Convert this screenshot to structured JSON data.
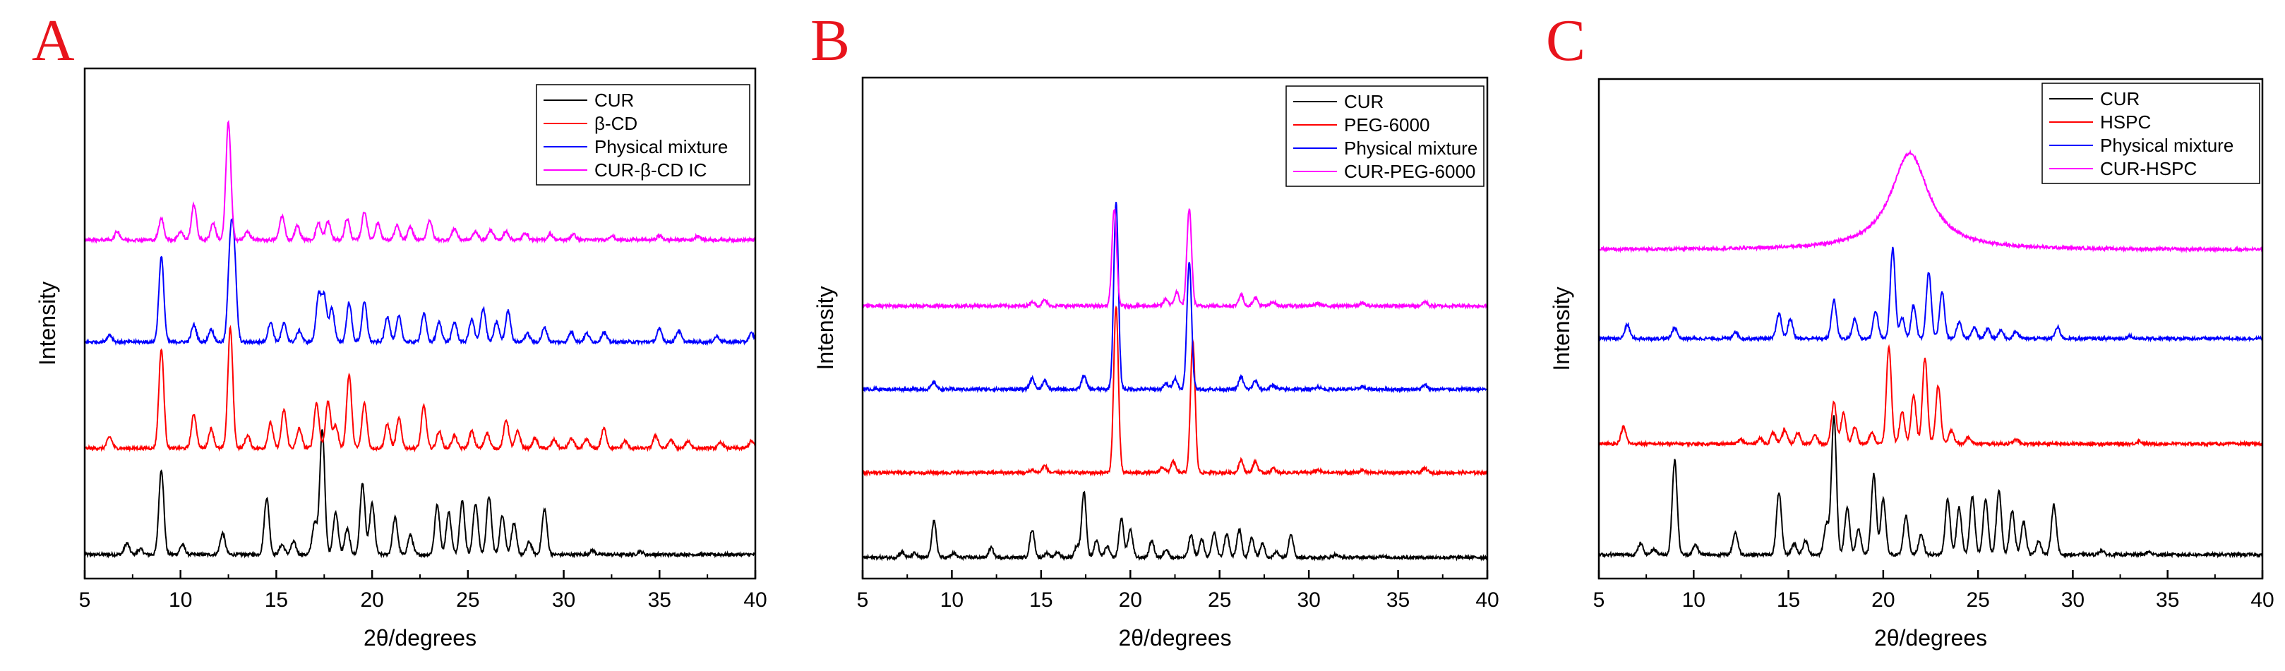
{
  "chart_data": [
    {
      "panel": "A",
      "type": "line",
      "title": "",
      "xlabel": "2θ/degrees",
      "ylabel": "Intensity",
      "xlim": [
        5,
        40
      ],
      "xticks": [
        5,
        10,
        15,
        20,
        25,
        30,
        35,
        40
      ],
      "yticks_shown": false,
      "legend_position": "top-right",
      "series": [
        {
          "name": "CUR",
          "color": "#000000",
          "offset": 0,
          "baseline": 3,
          "peaks": [
            [
              7.2,
              8
            ],
            [
              7.9,
              4
            ],
            [
              9.0,
              60
            ],
            [
              10.1,
              7
            ],
            [
              12.2,
              15
            ],
            [
              14.5,
              40
            ],
            [
              15.3,
              7
            ],
            [
              15.9,
              9
            ],
            [
              17.0,
              22
            ],
            [
              17.4,
              88
            ],
            [
              18.1,
              30
            ],
            [
              18.7,
              18
            ],
            [
              19.5,
              50
            ],
            [
              20.0,
              36
            ],
            [
              21.2,
              26
            ],
            [
              22.0,
              14
            ],
            [
              23.4,
              35
            ],
            [
              24.0,
              30
            ],
            [
              24.7,
              38
            ],
            [
              25.4,
              36
            ],
            [
              26.1,
              41
            ],
            [
              26.8,
              28
            ],
            [
              27.4,
              22
            ],
            [
              28.2,
              9
            ],
            [
              29.0,
              32
            ],
            [
              31.5,
              3
            ],
            [
              34.0,
              2
            ]
          ]
        },
        {
          "name": "β-CD",
          "color": "#ff0000",
          "offset": 75,
          "baseline": 3,
          "peaks": [
            [
              6.3,
              8
            ],
            [
              9.0,
              70
            ],
            [
              10.7,
              24
            ],
            [
              11.6,
              14
            ],
            [
              12.6,
              85
            ],
            [
              13.5,
              9
            ],
            [
              14.7,
              18
            ],
            [
              15.4,
              27
            ],
            [
              16.2,
              14
            ],
            [
              17.1,
              32
            ],
            [
              17.7,
              33
            ],
            [
              18.1,
              16
            ],
            [
              18.8,
              52
            ],
            [
              19.6,
              32
            ],
            [
              20.8,
              17
            ],
            [
              21.4,
              21
            ],
            [
              22.7,
              30
            ],
            [
              23.5,
              12
            ],
            [
              24.3,
              9
            ],
            [
              25.2,
              12
            ],
            [
              26.0,
              11
            ],
            [
              27.0,
              20
            ],
            [
              27.6,
              12
            ],
            [
              28.5,
              7
            ],
            [
              29.5,
              6
            ],
            [
              30.4,
              7
            ],
            [
              31.2,
              6
            ],
            [
              32.1,
              14
            ],
            [
              33.2,
              5
            ],
            [
              34.8,
              9
            ],
            [
              35.6,
              6
            ],
            [
              36.5,
              5
            ],
            [
              38.2,
              4
            ],
            [
              39.8,
              5
            ]
          ]
        },
        {
          "name": "Physical mixture",
          "color": "#0000ff",
          "offset": 150,
          "baseline": 3,
          "peaks": [
            [
              6.3,
              5
            ],
            [
              9.0,
              60
            ],
            [
              10.7,
              12
            ],
            [
              11.6,
              9
            ],
            [
              12.6,
              62
            ],
            [
              12.8,
              55
            ],
            [
              14.7,
              14
            ],
            [
              15.4,
              13
            ],
            [
              16.2,
              8
            ],
            [
              17.2,
              32
            ],
            [
              17.5,
              32
            ],
            [
              17.9,
              24
            ],
            [
              18.8,
              28
            ],
            [
              19.6,
              28
            ],
            [
              20.8,
              18
            ],
            [
              21.4,
              18
            ],
            [
              22.7,
              20
            ],
            [
              23.5,
              14
            ],
            [
              24.3,
              14
            ],
            [
              25.2,
              16
            ],
            [
              25.8,
              24
            ],
            [
              26.5,
              14
            ],
            [
              27.1,
              22
            ],
            [
              28.1,
              6
            ],
            [
              29.0,
              10
            ],
            [
              30.4,
              7
            ],
            [
              31.2,
              6
            ],
            [
              32.1,
              7
            ],
            [
              35.0,
              9
            ],
            [
              36.0,
              8
            ],
            [
              38.0,
              4
            ],
            [
              39.8,
              6
            ]
          ]
        },
        {
          "name": "CUR-β-CD IC",
          "color": "#ff00ff",
          "offset": 222,
          "baseline": 3,
          "peaks": [
            [
              6.7,
              6
            ],
            [
              9.0,
              15
            ],
            [
              10.0,
              6
            ],
            [
              10.7,
              25
            ],
            [
              11.7,
              12
            ],
            [
              12.5,
              83
            ],
            [
              13.5,
              6
            ],
            [
              15.3,
              17
            ],
            [
              16.1,
              10
            ],
            [
              17.2,
              12
            ],
            [
              17.7,
              13
            ],
            [
              18.7,
              15
            ],
            [
              19.6,
              20
            ],
            [
              20.3,
              12
            ],
            [
              21.3,
              10
            ],
            [
              22.0,
              9
            ],
            [
              23.0,
              14
            ],
            [
              24.3,
              8
            ],
            [
              25.4,
              6
            ],
            [
              26.2,
              7
            ],
            [
              27.0,
              6
            ],
            [
              28.0,
              5
            ],
            [
              29.3,
              4
            ],
            [
              30.5,
              4
            ],
            [
              32.5,
              3
            ],
            [
              35.0,
              3
            ],
            [
              37.0,
              3
            ]
          ]
        }
      ]
    },
    {
      "panel": "B",
      "type": "line",
      "title": "",
      "xlabel": "2θ/degrees",
      "ylabel": "Intensity",
      "xlim": [
        5,
        40
      ],
      "xticks": [
        5,
        10,
        15,
        20,
        25,
        30,
        35,
        40
      ],
      "yticks_shown": false,
      "legend_position": "top-right",
      "series": [
        {
          "name": "CUR",
          "color": "#000000",
          "offset": 0,
          "baseline": 1,
          "peaks": [
            [
              7.2,
              4
            ],
            [
              7.9,
              3
            ],
            [
              9.0,
              26
            ],
            [
              10.1,
              3
            ],
            [
              12.2,
              7
            ],
            [
              14.5,
              20
            ],
            [
              15.3,
              3
            ],
            [
              15.9,
              4
            ],
            [
              17.0,
              8
            ],
            [
              17.4,
              47
            ],
            [
              18.1,
              12
            ],
            [
              18.7,
              8
            ],
            [
              19.5,
              28
            ],
            [
              20.0,
              20
            ],
            [
              21.2,
              12
            ],
            [
              22.0,
              6
            ],
            [
              23.4,
              16
            ],
            [
              24.0,
              13
            ],
            [
              24.7,
              18
            ],
            [
              25.4,
              17
            ],
            [
              26.1,
              20
            ],
            [
              26.8,
              14
            ],
            [
              27.4,
              10
            ],
            [
              28.2,
              4
            ],
            [
              29.0,
              17
            ],
            [
              31.5,
              2
            ],
            [
              34.0,
              1
            ]
          ]
        },
        {
          "name": "PEG-6000",
          "color": "#ff0000",
          "offset": 60,
          "baseline": 2,
          "peaks": [
            [
              14.5,
              2
            ],
            [
              15.2,
              5
            ],
            [
              19.2,
              120
            ],
            [
              21.8,
              4
            ],
            [
              22.4,
              8
            ],
            [
              23.5,
              95
            ],
            [
              26.2,
              9
            ],
            [
              27.0,
              8
            ],
            [
              28.0,
              3
            ],
            [
              30.5,
              2
            ],
            [
              33.0,
              2
            ],
            [
              36.5,
              3
            ]
          ]
        },
        {
          "name": "Physical mixture",
          "color": "#0000ff",
          "offset": 120,
          "baseline": 2,
          "peaks": [
            [
              9.0,
              5
            ],
            [
              14.5,
              8
            ],
            [
              15.2,
              6
            ],
            [
              17.4,
              10
            ],
            [
              19.2,
              134
            ],
            [
              22.0,
              4
            ],
            [
              22.5,
              8
            ],
            [
              23.3,
              92
            ],
            [
              26.2,
              9
            ],
            [
              27.0,
              6
            ],
            [
              28.0,
              3
            ],
            [
              30.5,
              2
            ],
            [
              33.0,
              2
            ],
            [
              36.5,
              3
            ]
          ]
        },
        {
          "name": "CUR-PEG-6000",
          "color": "#ff00ff",
          "offset": 180,
          "baseline": 2,
          "peaks": [
            [
              14.5,
              3
            ],
            [
              15.2,
              4
            ],
            [
              19.1,
              70
            ],
            [
              22.0,
              5
            ],
            [
              22.6,
              10
            ],
            [
              23.3,
              70
            ],
            [
              26.2,
              8
            ],
            [
              27.0,
              6
            ],
            [
              28.0,
              3
            ],
            [
              30.5,
              2
            ],
            [
              33.0,
              2
            ],
            [
              36.5,
              3
            ]
          ]
        }
      ]
    },
    {
      "panel": "C",
      "type": "line",
      "title": "",
      "xlabel": "2θ/degrees",
      "ylabel": "Intensity",
      "xlim": [
        5,
        40
      ],
      "xticks": [
        5,
        10,
        15,
        20,
        25,
        30,
        35,
        40
      ],
      "yticks_shown": false,
      "legend_position": "top-right",
      "series": [
        {
          "name": "CUR",
          "color": "#000000",
          "offset": 0,
          "baseline": 3,
          "peaks": [
            [
              7.2,
              8
            ],
            [
              7.9,
              4
            ],
            [
              9.0,
              68
            ],
            [
              10.1,
              7
            ],
            [
              12.2,
              16
            ],
            [
              14.5,
              45
            ],
            [
              15.3,
              8
            ],
            [
              15.9,
              10
            ],
            [
              17.0,
              22
            ],
            [
              17.4,
              100
            ],
            [
              18.1,
              34
            ],
            [
              18.7,
              18
            ],
            [
              19.5,
              58
            ],
            [
              20.0,
              40
            ],
            [
              21.2,
              28
            ],
            [
              22.0,
              15
            ],
            [
              23.4,
              40
            ],
            [
              24.0,
              34
            ],
            [
              24.7,
              42
            ],
            [
              25.4,
              40
            ],
            [
              26.1,
              46
            ],
            [
              26.8,
              32
            ],
            [
              27.4,
              24
            ],
            [
              28.2,
              10
            ],
            [
              29.0,
              36
            ],
            [
              31.5,
              3
            ],
            [
              34.0,
              2
            ]
          ]
        },
        {
          "name": "HSPC",
          "color": "#ff0000",
          "offset": 80,
          "baseline": 3,
          "peaks": [
            [
              6.3,
              12
            ],
            [
              12.5,
              3
            ],
            [
              13.5,
              4
            ],
            [
              14.2,
              8
            ],
            [
              14.8,
              10
            ],
            [
              15.5,
              8
            ],
            [
              16.4,
              6
            ],
            [
              17.4,
              30
            ],
            [
              17.9,
              22
            ],
            [
              18.5,
              12
            ],
            [
              19.4,
              8
            ],
            [
              20.3,
              70
            ],
            [
              21.0,
              24
            ],
            [
              21.6,
              35
            ],
            [
              22.2,
              62
            ],
            [
              22.9,
              42
            ],
            [
              23.6,
              10
            ],
            [
              24.5,
              5
            ],
            [
              27.0,
              3
            ],
            [
              33.5,
              2
            ]
          ]
        },
        {
          "name": "Physical mixture",
          "color": "#0000ff",
          "offset": 155,
          "baseline": 4,
          "peaks": [
            [
              6.5,
              10
            ],
            [
              9.0,
              8
            ],
            [
              12.2,
              5
            ],
            [
              14.5,
              18
            ],
            [
              15.1,
              14
            ],
            [
              17.4,
              28
            ],
            [
              18.5,
              14
            ],
            [
              19.6,
              20
            ],
            [
              20.5,
              65
            ],
            [
              21.0,
              15
            ],
            [
              21.6,
              24
            ],
            [
              22.4,
              48
            ],
            [
              23.1,
              34
            ],
            [
              24.0,
              12
            ],
            [
              24.8,
              8
            ],
            [
              25.5,
              7
            ],
            [
              26.2,
              6
            ],
            [
              27.0,
              5
            ],
            [
              29.2,
              8
            ],
            [
              33.0,
              2
            ]
          ]
        },
        {
          "name": "CUR-HSPC",
          "color": "#ff00ff",
          "offset": 220,
          "baseline": 3,
          "broad_peak": [
            21.4,
            70,
            1.2
          ],
          "peaks": []
        }
      ]
    }
  ]
}
